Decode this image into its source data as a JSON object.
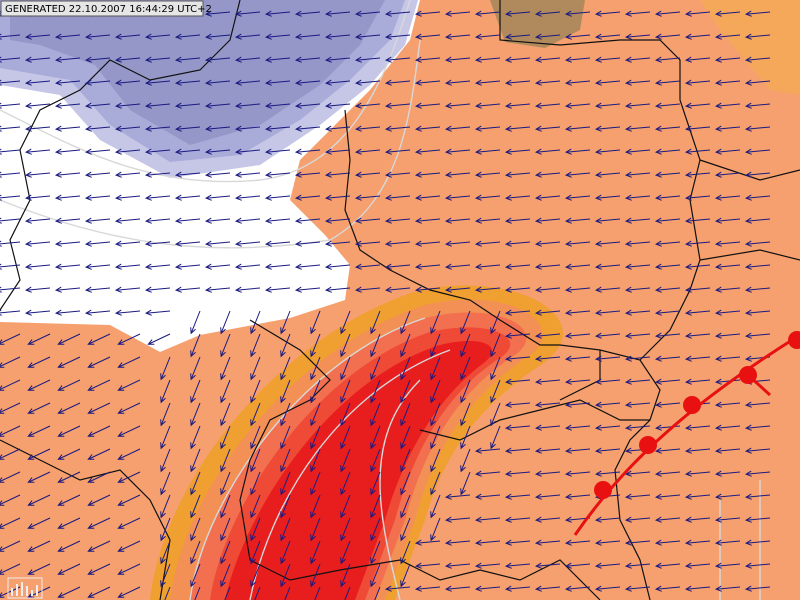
{
  "header": {
    "generated": "GENERATED 22.10.2007 16:44:29 UTC+2"
  }
}
